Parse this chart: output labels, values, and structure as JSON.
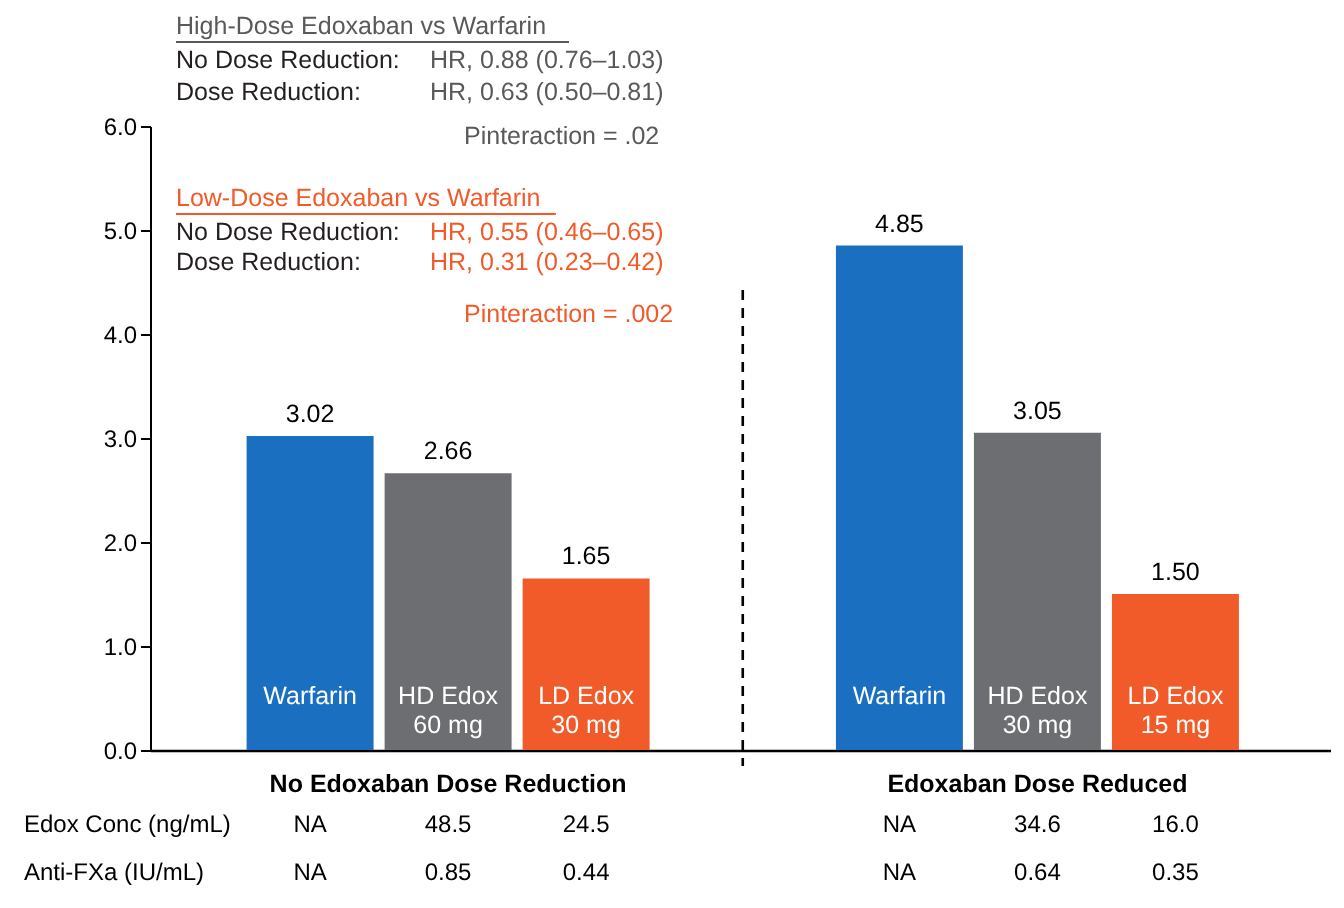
{
  "chart_data": {
    "type": "bar",
    "categories": [
      "Warfarin",
      "HD Edox\n60 mg",
      "LD Edox\n30 mg",
      "Warfarin",
      "HD Edox\n30 mg",
      "LD Edox\n15 mg"
    ],
    "values": [
      3.02,
      2.66,
      1.65,
      4.85,
      3.05,
      1.5
    ],
    "colors": [
      "#1b6fc0",
      "#6d6e71",
      "#f15a29",
      "#1b6fc0",
      "#6d6e71",
      "#f15a29"
    ],
    "ylim": [
      0,
      6
    ],
    "yticks": [
      {
        "value": 0,
        "label": "0.0"
      },
      {
        "value": 1,
        "label": "1.0"
      },
      {
        "value": 2,
        "label": "2.0"
      },
      {
        "value": 3,
        "label": "3.0"
      },
      {
        "value": 4,
        "label": "4.0"
      },
      {
        "value": 5,
        "label": "5.0"
      },
      {
        "value": 6,
        "label": "6.0"
      }
    ],
    "value_labels": [
      "3.02",
      "2.66",
      "1.65",
      "4.85",
      "3.05",
      "1.50"
    ],
    "ref_lines": [
      {
        "axis": "x",
        "line_style": "dashed"
      }
    ],
    "annotations": [
      "High-Dose Edoxaban vs Warfarin",
      "No Dose Reduction: HR, 0.88 (0.76–1.03)",
      "Dose Reduction: HR, 0.63 (0.50–0.81)",
      "Pinteraction = .02",
      "Low-Dose Edoxaban vs Warfarin",
      "No Dose Reduction: HR, 0.55 (0.46–0.65)",
      "Dose Reduction: HR, 0.31 (0.23–0.42)",
      "Pinteraction = .002",
      "No Edoxaban Dose Reduction",
      "Edoxaban Dose Reduced",
      "Edox Conc (ng/mL)",
      "Anti-FXa (IU/mL)",
      "NA",
      "48.5",
      "24.5",
      "NA",
      "34.6",
      "16.0",
      "NA",
      "0.85",
      "0.44",
      "NA",
      "0.64",
      "0.35"
    ]
  }
}
